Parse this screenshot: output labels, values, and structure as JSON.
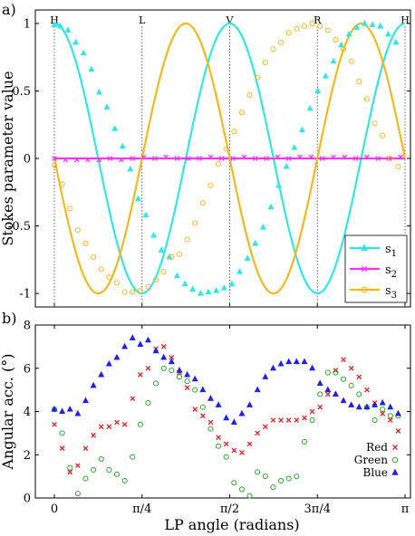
{
  "chart_data": [
    {
      "type": "line",
      "panel_label": "a)",
      "ylabel": "Stokes parameter value",
      "xlim": [
        0,
        3.14159
      ],
      "ylim": [
        -1.1,
        1.1
      ],
      "yticks": [
        1,
        0.5,
        0,
        -0.5,
        -1
      ],
      "ytick_labels": [
        "1",
        "0.5",
        "0",
        "-0.5",
        "-1"
      ],
      "legend": "bottom-right",
      "vertical_markers": [
        {
          "x": 0,
          "label": "H"
        },
        {
          "x": 0.7854,
          "label": "L"
        },
        {
          "x": 1.5708,
          "label": "V"
        },
        {
          "x": 2.3562,
          "label": "R"
        },
        {
          "x": 3.1416,
          "label": "H"
        }
      ],
      "series": [
        {
          "name": "s1",
          "color": "#33e6e6",
          "marker": "triangle",
          "fit": "cos(4x)",
          "x": [
            0,
            0.052,
            0.122,
            0.192,
            0.262,
            0.332,
            0.401,
            0.471,
            0.541,
            0.611,
            0.68,
            0.75,
            0.82,
            0.89,
            0.96,
            1.03,
            1.1,
            1.17,
            1.24,
            1.31,
            1.38,
            1.45,
            1.52,
            1.59,
            1.66,
            1.73,
            1.8,
            1.87,
            1.94,
            2.01,
            2.08,
            2.15,
            2.22,
            2.29,
            2.36,
            2.43,
            2.5,
            2.57,
            2.64,
            2.71,
            2.78,
            2.85,
            2.92,
            2.99,
            3.06
          ],
          "values": [
            0.99,
            0.98,
            0.95,
            0.86,
            0.78,
            0.66,
            0.49,
            0.38,
            0.22,
            0.09,
            -0.08,
            -0.3,
            -0.42,
            -0.57,
            -0.68,
            -0.73,
            -0.87,
            -0.93,
            -0.97,
            -1.0,
            -0.99,
            -0.98,
            -0.96,
            -0.93,
            -0.84,
            -0.74,
            -0.63,
            -0.51,
            -0.36,
            -0.2,
            -0.06,
            0.08,
            0.21,
            0.37,
            0.5,
            0.61,
            0.72,
            0.84,
            0.92,
            0.97,
            1.0,
            0.99,
            0.98,
            0.92,
            0.86
          ]
        },
        {
          "name": "s2",
          "color": "#ff33ff",
          "marker": "x",
          "fit": "0",
          "x": [
            0,
            0.1,
            0.2,
            0.3,
            0.4,
            0.5,
            0.6,
            0.7,
            0.8,
            0.9,
            1.0,
            1.1,
            1.2,
            1.3,
            1.4,
            1.5,
            1.6,
            1.7,
            1.8,
            1.9,
            2.0,
            2.1,
            2.2,
            2.3,
            2.4,
            2.5,
            2.6,
            2.7,
            2.8,
            2.9,
            3.0,
            3.1
          ],
          "values": [
            0,
            -0.01,
            -0.01,
            -0.01,
            -0.01,
            0,
            -0.01,
            0,
            0.01,
            0,
            0.01,
            0,
            0,
            0,
            0.01,
            0,
            0,
            0.01,
            0,
            0,
            0.01,
            0,
            0.01,
            0.01,
            0,
            0.01,
            0.01,
            0,
            0.01,
            0,
            0,
            0.01
          ]
        },
        {
          "name": "s3",
          "color": "#f2b81f",
          "marker": "circle",
          "fit": "-sin(4x)",
          "x": [
            0,
            0.07,
            0.14,
            0.21,
            0.28,
            0.35,
            0.42,
            0.49,
            0.56,
            0.63,
            0.7,
            0.77,
            0.84,
            0.91,
            0.98,
            1.05,
            1.12,
            1.19,
            1.26,
            1.33,
            1.4,
            1.47,
            1.54,
            1.61,
            1.68,
            1.75,
            1.82,
            1.89,
            1.96,
            2.03,
            2.1,
            2.17,
            2.24,
            2.31,
            2.38,
            2.45,
            2.52,
            2.59,
            2.66,
            2.73,
            2.8,
            2.87,
            2.94,
            3.01,
            3.08
          ],
          "values": [
            -0.05,
            -0.19,
            -0.37,
            -0.53,
            -0.63,
            -0.73,
            -0.82,
            -0.88,
            -0.92,
            -0.99,
            -0.99,
            -0.98,
            -0.95,
            -0.9,
            -0.84,
            -0.73,
            -0.71,
            -0.6,
            -0.48,
            -0.33,
            -0.2,
            -0.04,
            0.07,
            0.2,
            0.34,
            0.47,
            0.6,
            0.71,
            0.81,
            0.86,
            0.93,
            0.96,
            0.98,
            1.0,
            0.98,
            0.95,
            0.88,
            0.81,
            0.72,
            0.57,
            0.44,
            0.26,
            0.17,
            0.0,
            -0.06
          ]
        }
      ]
    },
    {
      "type": "scatter",
      "panel_label": "b)",
      "xlabel": "LP angle (radians)",
      "ylabel": "Angular acc. (°)",
      "xlim": [
        0,
        3.14159
      ],
      "ylim": [
        0,
        8
      ],
      "yticks": [
        0,
        2,
        4,
        6,
        8
      ],
      "ytick_labels": [
        "0",
        "2",
        "4",
        "6",
        "8"
      ],
      "xticks": [
        0,
        0.7854,
        1.5708,
        2.3562,
        3.1416
      ],
      "xtick_labels": [
        "0",
        "π/4",
        "π/2",
        "3π/4",
        "π"
      ],
      "legend": "bottom-right",
      "series": [
        {
          "name": "Red",
          "color": "#e02020",
          "marker": "x",
          "x": [
            0,
            0.07,
            0.14,
            0.21,
            0.28,
            0.35,
            0.42,
            0.49,
            0.56,
            0.63,
            0.7,
            0.77,
            0.84,
            0.91,
            0.98,
            1.05,
            1.12,
            1.19,
            1.26,
            1.33,
            1.4,
            1.47,
            1.54,
            1.61,
            1.68,
            1.75,
            1.82,
            1.89,
            1.96,
            2.03,
            2.1,
            2.17,
            2.24,
            2.31,
            2.38,
            2.45,
            2.52,
            2.59,
            2.66,
            2.73,
            2.8,
            2.87,
            2.94,
            3.01,
            3.08
          ],
          "values": [
            3.4,
            2.3,
            1.2,
            1.5,
            2.3,
            2.9,
            3.3,
            3.3,
            3.5,
            3.4,
            4.6,
            5.7,
            6.0,
            6.9,
            7.0,
            6.5,
            5.8,
            5.1,
            4.1,
            3.8,
            3.5,
            2.8,
            2.5,
            2.2,
            2.1,
            2.5,
            3.0,
            3.3,
            3.6,
            3.6,
            3.6,
            3.6,
            3.7,
            4.0,
            4.2,
            4.8,
            5.9,
            6.4,
            6.0,
            5.6,
            5.0,
            4.4,
            3.9,
            3.6,
            3.1
          ]
        },
        {
          "name": "Green",
          "color": "#2aa52a",
          "marker": "circle",
          "x": [
            0,
            0.07,
            0.14,
            0.21,
            0.28,
            0.35,
            0.42,
            0.49,
            0.56,
            0.63,
            0.7,
            0.77,
            0.84,
            0.91,
            0.98,
            1.05,
            1.12,
            1.19,
            1.26,
            1.33,
            1.4,
            1.47,
            1.54,
            1.61,
            1.68,
            1.75,
            1.82,
            1.89,
            1.96,
            2.03,
            2.1,
            2.17,
            2.24,
            2.31,
            2.38,
            2.45,
            2.52,
            2.59,
            2.66,
            2.73,
            2.8,
            2.87,
            2.94,
            3.01,
            3.08
          ],
          "values": [
            4.1,
            3.0,
            1.4,
            0.2,
            0.9,
            1.3,
            1.8,
            1.3,
            1.1,
            0.8,
            1.9,
            3.4,
            4.4,
            5.3,
            6.0,
            5.9,
            5.6,
            5.4,
            5.0,
            4.2,
            3.2,
            2.4,
            1.9,
            0.7,
            0.4,
            0.1,
            1.2,
            1.0,
            0.5,
            0.8,
            0.9,
            1.0,
            2.6,
            3.6,
            4.8,
            5.8,
            5.8,
            5.5,
            5.2,
            4.8,
            4.2,
            3.6,
            4.1,
            3.8,
            3.8
          ]
        },
        {
          "name": "Blue",
          "color": "#2020e8",
          "marker": "triangle",
          "x": [
            0,
            0.07,
            0.14,
            0.21,
            0.28,
            0.35,
            0.42,
            0.49,
            0.56,
            0.63,
            0.7,
            0.77,
            0.84,
            0.91,
            0.98,
            1.05,
            1.12,
            1.19,
            1.26,
            1.33,
            1.4,
            1.47,
            1.54,
            1.61,
            1.68,
            1.75,
            1.82,
            1.89,
            1.96,
            2.03,
            2.1,
            2.17,
            2.24,
            2.31,
            2.38,
            2.45,
            2.52,
            2.59,
            2.66,
            2.73,
            2.8,
            2.87,
            2.94,
            3.01,
            3.08
          ],
          "values": [
            4.1,
            4.0,
            4.1,
            3.9,
            4.5,
            5.2,
            5.7,
            6.2,
            6.5,
            7.0,
            7.4,
            7.1,
            7.3,
            6.8,
            6.5,
            6.3,
            5.9,
            5.7,
            5.5,
            5.0,
            4.6,
            4.3,
            3.7,
            3.5,
            3.9,
            4.3,
            5.0,
            5.6,
            6.0,
            6.2,
            6.3,
            6.3,
            6.3,
            6.0,
            5.3,
            5.0,
            4.8,
            4.5,
            4.3,
            4.2,
            4.2,
            4.3,
            4.4,
            4.2,
            3.9
          ]
        }
      ]
    }
  ]
}
